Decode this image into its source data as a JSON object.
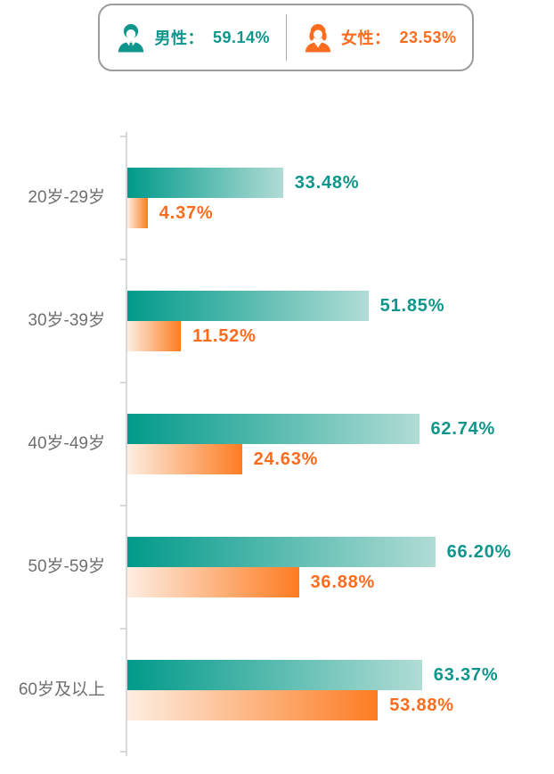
{
  "legend": {
    "male": {
      "label": "男性：",
      "value": "59.14%"
    },
    "female": {
      "label": "女性：",
      "value": "23.53%"
    }
  },
  "icons": {
    "male": "male-person-icon",
    "female": "female-person-icon"
  },
  "colors": {
    "male_accent": "#0f968c",
    "male_bar_start": "#019a8a",
    "male_bar_end": "#b0dcd5",
    "female_accent": "#fd6c1e",
    "female_bar_start": "#fdeee2",
    "female_bar_end": "#fd7c22",
    "category_label": "#6f6f6f",
    "axis": "#d9d9d9",
    "legend_border": "#9c9c9c"
  },
  "chart_data": {
    "type": "bar",
    "orientation": "horizontal",
    "categories": [
      "20岁-29岁",
      "30岁-39岁",
      "40岁-49岁",
      "50岁-59岁",
      "60岁及以上"
    ],
    "series": [
      {
        "name": "男性",
        "overall": "59.14%",
        "values": [
          33.48,
          51.85,
          62.74,
          66.2,
          63.37
        ],
        "labels": [
          "33.48%",
          "51.85%",
          "62.74%",
          "66.20%",
          "63.37%"
        ]
      },
      {
        "name": "女性",
        "overall": "23.53%",
        "values": [
          4.37,
          11.52,
          24.63,
          36.88,
          53.88
        ],
        "labels": [
          "4.37%",
          "11.52%",
          "24.63%",
          "36.88%",
          "53.88%"
        ]
      }
    ],
    "xlim": [
      0,
      100
    ],
    "grid": false,
    "legend_position": "top",
    "value_labels": "outside-end",
    "bar_gradient": true
  }
}
